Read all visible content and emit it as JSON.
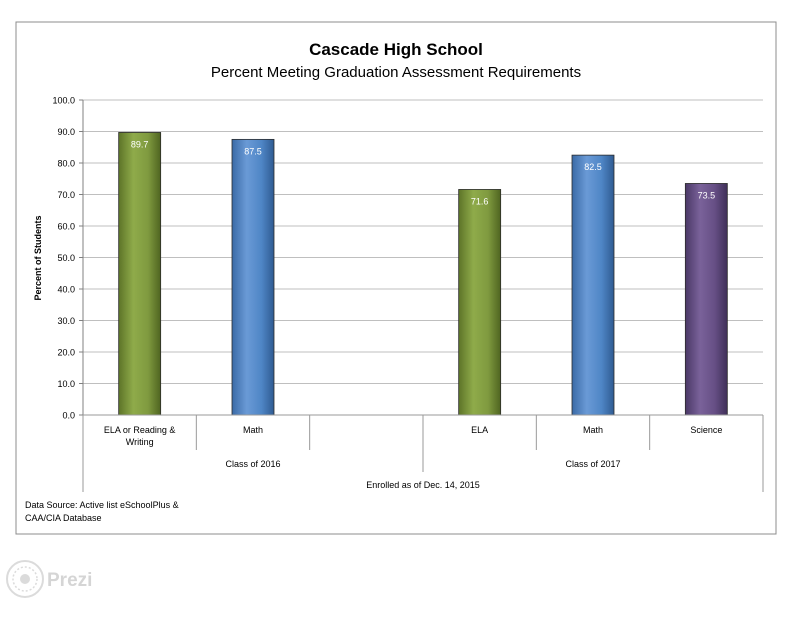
{
  "chart_data": {
    "type": "bar",
    "title": "Cascade High School",
    "subtitle": "Percent Meeting Graduation Assessment Requirements",
    "ylabel": "Percent of Students",
    "ylim": [
      0,
      100
    ],
    "yticks": [
      "0.0",
      "10.0",
      "20.0",
      "30.0",
      "40.0",
      "50.0",
      "60.0",
      "70.0",
      "80.0",
      "90.0",
      "100.0"
    ],
    "grid": true,
    "categories": [
      "ELA or Reading & Writing",
      "Math",
      "",
      "ELA",
      "Math",
      "Science"
    ],
    "category_lines": [
      [
        "ELA or Reading &",
        "Writing"
      ],
      [
        "Math"
      ],
      [
        ""
      ],
      [
        "ELA"
      ],
      [
        "Math"
      ],
      [
        "Science"
      ]
    ],
    "values": [
      89.7,
      87.5,
      null,
      71.6,
      82.5,
      73.5
    ],
    "value_labels": [
      "89.7",
      "87.5",
      "",
      "71.6",
      "82.5",
      "73.5"
    ],
    "bar_colors": [
      "#7f9a3f",
      "#4f86c6",
      "",
      "#7f9a3f",
      "#4f86c6",
      "#664f85"
    ],
    "groups": [
      {
        "label": "Class of 2016",
        "span": [
          0,
          2
        ]
      },
      {
        "label": "Class of 2017",
        "span": [
          3,
          5
        ]
      }
    ],
    "footer_label": "Enrolled as of Dec. 14, 2015",
    "data_source_lines": [
      "Data Source: Active list eSchoolPlus &",
      "CAA/CIA Database"
    ]
  },
  "watermark": {
    "text": "Prezi",
    "icon": "prezi-logo-icon"
  },
  "colors": {
    "grid": "#bfbfbf",
    "frame": "#8c8c8c",
    "text": "#000000"
  }
}
